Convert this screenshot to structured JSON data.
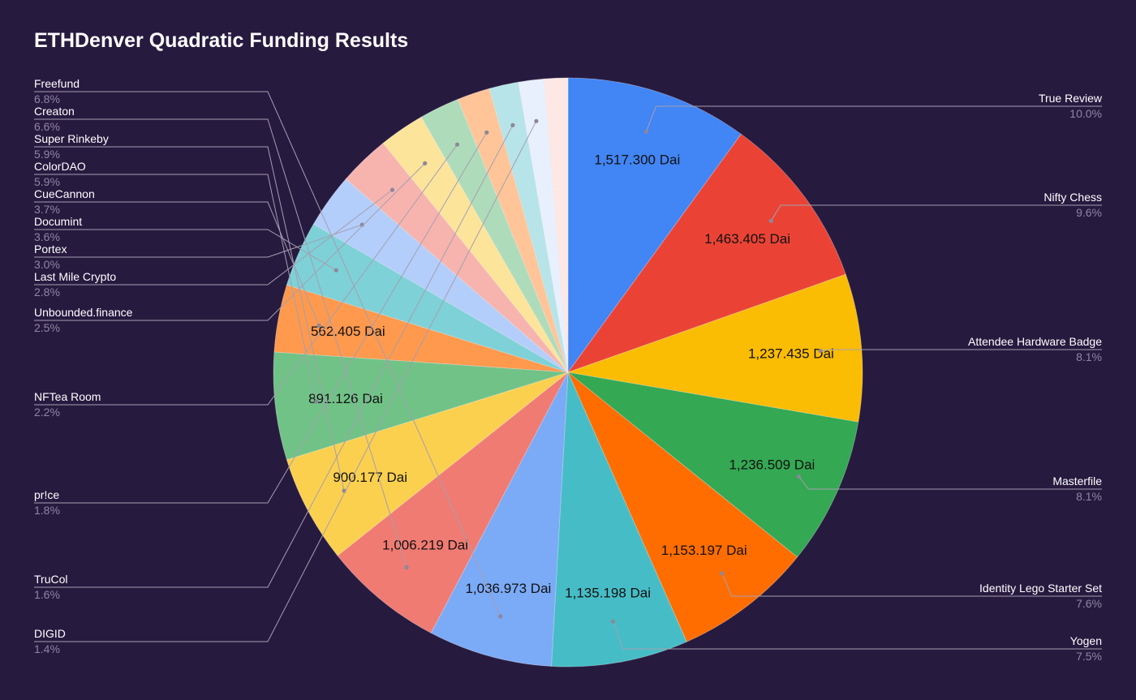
{
  "chart_data": {
    "type": "pie",
    "title": "ETHDenver Quadratic Funding Results",
    "value_suffix": " Dai",
    "slices": [
      {
        "name": "True Review",
        "percent_label": "10.0%",
        "value_label": "1,517.300",
        "color": "#4285f4"
      },
      {
        "name": "Nifty Chess",
        "percent_label": "9.6%",
        "value_label": "1,463.405",
        "color": "#ea4335"
      },
      {
        "name": "Attendee Hardware Badge",
        "percent_label": "8.1%",
        "value_label": "1,237.435",
        "color": "#fbbc04"
      },
      {
        "name": "Masterfile",
        "percent_label": "8.1%",
        "value_label": "1,236.509",
        "color": "#34a853"
      },
      {
        "name": "Identity Lego Starter Set",
        "percent_label": "7.6%",
        "value_label": "1,153.197",
        "color": "#ff6d01"
      },
      {
        "name": "Yogen",
        "percent_label": "7.5%",
        "value_label": "1,135.198",
        "color": "#46bdc6"
      },
      {
        "name": "Freefund",
        "percent_label": "6.8%",
        "value_label": "1,036.973",
        "color": "#7baaf7"
      },
      {
        "name": "Creaton",
        "percent_label": "6.6%",
        "value_label": "1,006.219",
        "color": "#f07b72"
      },
      {
        "name": "Super Rinkeby",
        "percent_label": "5.9%",
        "value_label": "900.177",
        "color": "#fcd04f"
      },
      {
        "name": "ColorDAO",
        "percent_label": "5.9%",
        "value_label": "891.126",
        "color": "#71c287"
      },
      {
        "name": "CueCannon",
        "percent_label": "3.7%",
        "value_label": "562.405",
        "color": "#ff994d"
      },
      {
        "name": "Documint",
        "percent_label": "3.6%",
        "value_label": "",
        "color": "#7ed1d7"
      },
      {
        "name": "Portex",
        "percent_label": "3.0%",
        "value_label": "",
        "color": "#b3cefb"
      },
      {
        "name": "Last Mile Crypto",
        "percent_label": "2.8%",
        "value_label": "",
        "color": "#f7b4ae"
      },
      {
        "name": "Unbounded.finance",
        "percent_label": "2.5%",
        "value_label": "",
        "color": "#fde49b"
      },
      {
        "name": "NFTea Room",
        "percent_label": "2.2%",
        "value_label": "",
        "color": "#aedcba"
      },
      {
        "name": "pr!ce",
        "percent_label": "1.8%",
        "value_label": "",
        "color": "#ffc599"
      },
      {
        "name": "TruCol",
        "percent_label": "1.6%",
        "value_label": "",
        "color": "#b6e4e8"
      },
      {
        "name": "DIGID",
        "percent_label": "1.4%",
        "value_label": "",
        "color": "#e8f0fe"
      },
      {
        "name": "",
        "percent_label": "",
        "value_label": "",
        "color": "#fde8e6"
      }
    ],
    "values": [
      10.0,
      9.6,
      8.1,
      8.1,
      7.6,
      7.5,
      6.8,
      6.6,
      5.9,
      5.9,
      3.7,
      3.6,
      3.0,
      2.8,
      2.5,
      2.2,
      1.8,
      1.6,
      1.4,
      1.3
    ],
    "legend": "none",
    "label_placement": "outside-with-leader-lines"
  }
}
